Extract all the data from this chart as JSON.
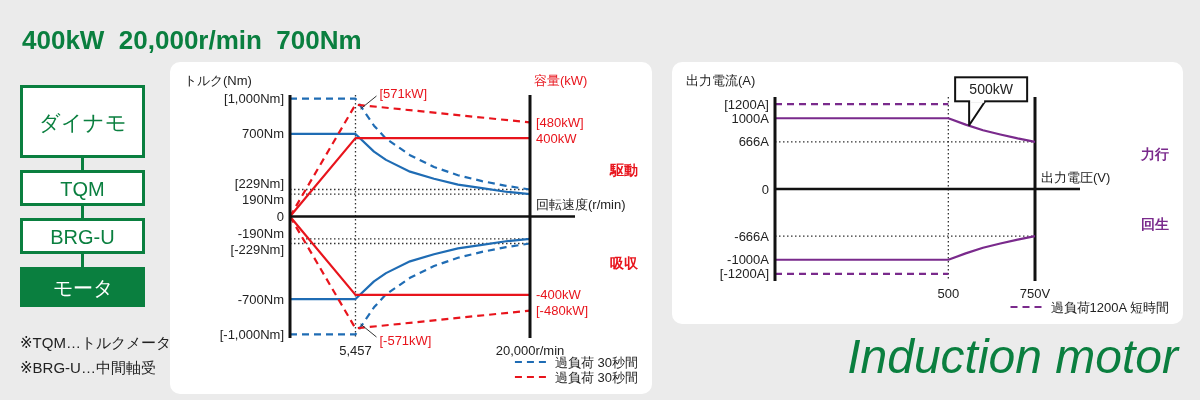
{
  "chart_data": [
    {
      "type": "other",
      "title": "400kW  20,000r/min  700Nm",
      "annotations": [
        "ダイナモ",
        "TQM",
        "BRG-U",
        "モータ",
        "※TQM…トルクメータ",
        "※BRG-U…中間軸受",
        "Induction motor"
      ]
    },
    {
      "type": "line",
      "xlabel": "回転速度(r/min)",
      "ylabel": "トルク(Nm)",
      "y2label": "容量(kW)",
      "xlim": [
        0,
        20000
      ],
      "ylim": [
        -1030,
        1030
      ],
      "y2lim": [
        -620,
        620
      ],
      "xticks": [
        {
          "value": 5457,
          "label": "5,457"
        },
        {
          "value": 20000,
          "label": "20,000r/min"
        }
      ],
      "yticks": [
        {
          "value": 1000,
          "label": "[1,000Nm]"
        },
        {
          "value": 700,
          "label": "700Nm"
        },
        0,
        {
          "value": -700,
          "label": "-700Nm"
        },
        {
          "value": -1000,
          "label": "[-1,000Nm]"
        }
      ],
      "y2ticks": [
        {
          "value": 480,
          "label": "[480kW]"
        },
        {
          "value": 400,
          "label": "400kW"
        },
        {
          "value": -400,
          "label": "-400kW"
        },
        {
          "value": -480,
          "label": "[-480kW]"
        }
      ],
      "grid": false,
      "legend": "bottom right",
      "series": [
        {
          "color": "#1f6cb4",
          "line_style": "solid",
          "x": [
            0,
            5457,
            7000,
            8000,
            10000,
            12000,
            14000,
            16000,
            18000,
            20000
          ],
          "values": [
            700,
            700,
            550,
            480,
            380,
            320,
            270,
            240,
            210,
            190
          ]
        },
        {
          "name": "過負荷 30秒間",
          "color": "#1f6cb4",
          "line_style": "dashed",
          "x": [
            0,
            5457,
            7000,
            8000,
            10000,
            12000,
            14000,
            16000,
            18000,
            20000
          ],
          "values": [
            1000,
            1000,
            770,
            660,
            520,
            420,
            350,
            300,
            260,
            229
          ]
        },
        {
          "color": "#1f6cb4",
          "line_style": "solid",
          "x": [
            0,
            5457,
            7000,
            8000,
            10000,
            12000,
            14000,
            16000,
            18000,
            20000
          ],
          "values": [
            -700,
            -700,
            -550,
            -480,
            -380,
            -320,
            -270,
            -240,
            -210,
            -190
          ]
        },
        {
          "color": "#1f6cb4",
          "line_style": "dashed",
          "x": [
            0,
            5457,
            7000,
            8000,
            10000,
            12000,
            14000,
            16000,
            18000,
            20000
          ],
          "values": [
            -1000,
            -1000,
            -770,
            -660,
            -520,
            -420,
            -350,
            -300,
            -260,
            -229
          ]
        },
        {
          "color": "#e8141c",
          "line_style": "solid",
          "axis": "y2",
          "x": [
            0,
            5457,
            20000
          ],
          "values": [
            0,
            400,
            400
          ]
        },
        {
          "name": "過負荷 30秒間",
          "color": "#e8141c",
          "line_style": "dashed",
          "axis": "y2",
          "x": [
            0,
            5457,
            20000
          ],
          "values": [
            0,
            571,
            480
          ]
        },
        {
          "color": "#e8141c",
          "line_style": "solid",
          "axis": "y2",
          "x": [
            0,
            5457,
            20000
          ],
          "values": [
            0,
            -400,
            -400
          ]
        },
        {
          "color": "#e8141c",
          "line_style": "dashed",
          "axis": "y2",
          "x": [
            0,
            5457,
            20000
          ],
          "values": [
            0,
            -571,
            -480
          ]
        }
      ],
      "ref_lines": [
        {
          "axis": "y",
          "value": 229,
          "label": "[229Nm]",
          "line_style": "dotted",
          "color": "#333333"
        },
        {
          "axis": "y",
          "value": 190,
          "label": "190Nm",
          "line_style": "dotted",
          "color": "#333333"
        },
        {
          "axis": "y",
          "value": -190,
          "label": "-190Nm",
          "line_style": "dotted",
          "color": "#333333"
        },
        {
          "axis": "y",
          "value": -229,
          "label": "[-229Nm]",
          "line_style": "dotted",
          "color": "#333333"
        },
        {
          "axis": "x",
          "value": 5457,
          "line_style": "dotted",
          "color": "#333333"
        }
      ],
      "annotations": [
        "[571kW]",
        "[-571kW]",
        "駆動",
        "吸収"
      ]
    },
    {
      "type": "line",
      "xlabel": "出力電圧(V)",
      "ylabel": "出力電流(A)",
      "xlim": [
        0,
        750
      ],
      "ylim": [
        -1300,
        1300
      ],
      "xticks": [
        500,
        {
          "value": 750,
          "label": "750V"
        }
      ],
      "yticks": [
        {
          "value": 1200,
          "label": "[1200A]"
        },
        {
          "value": 1000,
          "label": "1000A"
        },
        {
          "value": 666,
          "label": "666A"
        },
        0,
        {
          "value": -666,
          "label": "-666A"
        },
        {
          "value": -1000,
          "label": "-1000A"
        },
        {
          "value": -1200,
          "label": "[-1200A]"
        }
      ],
      "grid": false,
      "legend": "bottom right",
      "series": [
        {
          "color": "#7a2a8c",
          "line_style": "solid",
          "x": [
            0,
            500,
            550,
            600,
            650,
            700,
            750
          ],
          "values": [
            1000,
            1000,
            910,
            830,
            770,
            715,
            666
          ]
        },
        {
          "color": "#7a2a8c",
          "line_style": "solid",
          "x": [
            0,
            500,
            550,
            600,
            650,
            700,
            750
          ],
          "values": [
            -1000,
            -1000,
            -910,
            -830,
            -770,
            -715,
            -666
          ]
        },
        {
          "name": "過負荷1200A 短時間",
          "color": "#7a2a8c",
          "line_style": "dashed",
          "x": [
            0,
            500
          ],
          "values": [
            1200,
            1200
          ]
        },
        {
          "color": "#7a2a8c",
          "line_style": "dashed",
          "x": [
            0,
            500
          ],
          "values": [
            -1200,
            -1200
          ]
        }
      ],
      "ref_lines": [
        {
          "axis": "y",
          "value": 666,
          "line_style": "dotted",
          "color": "#333333"
        },
        {
          "axis": "y",
          "value": -666,
          "line_style": "dotted",
          "color": "#333333"
        },
        {
          "axis": "x",
          "value": 500,
          "line_style": "dotted",
          "color": "#333333"
        },
        {
          "axis": "x",
          "value": 750,
          "line_style": "solid",
          "color": "#111111"
        }
      ],
      "annotations": [
        {
          "text": "500kW",
          "x": 560,
          "y": 900
        },
        "力行",
        "回生"
      ]
    }
  ]
}
